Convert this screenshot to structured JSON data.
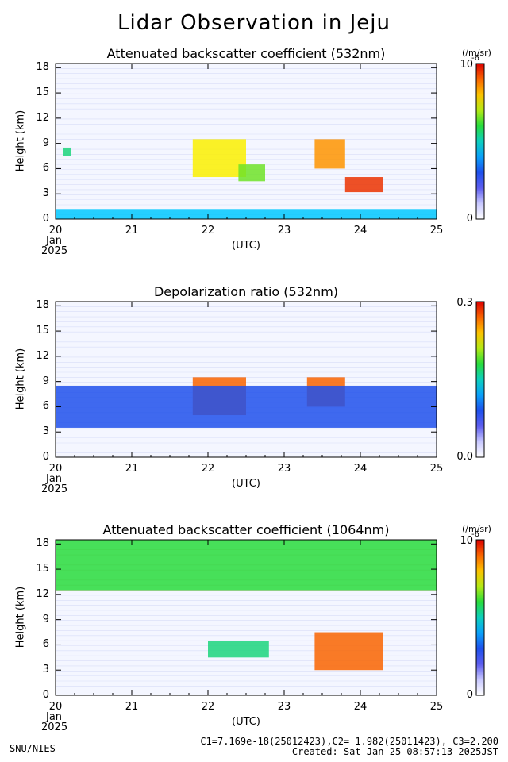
{
  "page": {
    "title": "Lidar Observation in Jeju",
    "footer_left": "SNU/NIES",
    "footer_constants": "C1=7.169e-18(25012423),C2= 1.982(25011423), C3=2.200",
    "footer_created": "Created: Sat Jan 25 08:57:13 2025JST"
  },
  "chart_data": [
    {
      "type": "heatmap",
      "title": "Attenuated backscatter coefficient (532nm)",
      "xlabel": "(UTC)",
      "ylabel": "Height (km)",
      "x_ticks": [
        "20",
        "21",
        "22",
        "23",
        "24",
        "25"
      ],
      "x_sub_labels": [
        "Jan",
        "2025"
      ],
      "xlim": [
        20,
        25
      ],
      "y_ticks": [
        "0",
        "3",
        "6",
        "9",
        "12",
        "15",
        "18"
      ],
      "ylim": [
        0,
        18.5
      ],
      "colorbar": {
        "min_label": "0",
        "max_label": "10",
        "max_exp": "-6",
        "unit": "(/m/sr)"
      },
      "features": [
        {
          "x": [
            20.1,
            20.2
          ],
          "y": [
            7.5,
            8.5
          ],
          "level": 0.55
        },
        {
          "x": [
            21.8,
            22.5
          ],
          "y": [
            5.0,
            9.5
          ],
          "level": 0.75
        },
        {
          "x": [
            22.4,
            22.75
          ],
          "y": [
            4.5,
            6.5
          ],
          "level": 0.65
        },
        {
          "x": [
            23.4,
            23.8
          ],
          "y": [
            6.0,
            9.5
          ],
          "level": 0.85
        },
        {
          "x": [
            23.8,
            24.3
          ],
          "y": [
            3.2,
            5.0
          ],
          "level": 0.95
        },
        {
          "x": [
            20.0,
            25.0
          ],
          "y": [
            0.0,
            1.2
          ],
          "level": 0.45
        }
      ]
    },
    {
      "type": "heatmap",
      "title": "Depolarization ratio (532nm)",
      "xlabel": "(UTC)",
      "ylabel": "Height (km)",
      "x_ticks": [
        "20",
        "21",
        "22",
        "23",
        "24",
        "25"
      ],
      "x_sub_labels": [
        "Jan",
        "2025"
      ],
      "xlim": [
        20,
        25
      ],
      "y_ticks": [
        "0",
        "3",
        "6",
        "9",
        "12",
        "15",
        "18"
      ],
      "ylim": [
        0,
        18.5
      ],
      "colorbar": {
        "min_label": "0.0",
        "max_label": "0.3",
        "max_exp": "",
        "unit": ""
      },
      "features": [
        {
          "x": [
            21.8,
            22.5
          ],
          "y": [
            5.0,
            9.5
          ],
          "level": 0.9
        },
        {
          "x": [
            23.3,
            23.8
          ],
          "y": [
            6.0,
            9.5
          ],
          "level": 0.9
        },
        {
          "x": [
            20.0,
            25.0
          ],
          "y": [
            3.5,
            8.5
          ],
          "level": 0.3
        }
      ]
    },
    {
      "type": "heatmap",
      "title": "Attenuated backscatter coefficient (1064nm)",
      "xlabel": "(UTC)",
      "ylabel": "Height (km)",
      "x_ticks": [
        "20",
        "21",
        "22",
        "23",
        "24",
        "25"
      ],
      "x_sub_labels": [
        "Jan",
        "2025"
      ],
      "xlim": [
        20,
        25
      ],
      "y_ticks": [
        "0",
        "3",
        "6",
        "9",
        "12",
        "15",
        "18"
      ],
      "ylim": [
        0,
        18.5
      ],
      "colorbar": {
        "min_label": "0",
        "max_label": "10",
        "max_exp": "-6",
        "unit": "(/m/sr)"
      },
      "features": [
        {
          "x": [
            22.0,
            22.8
          ],
          "y": [
            4.5,
            6.5
          ],
          "level": 0.55
        },
        {
          "x": [
            23.4,
            24.3
          ],
          "y": [
            3.0,
            7.5
          ],
          "level": 0.9
        },
        {
          "x": [
            20.0,
            25.0
          ],
          "y": [
            12.5,
            18.5
          ],
          "level": 0.6
        }
      ]
    }
  ]
}
